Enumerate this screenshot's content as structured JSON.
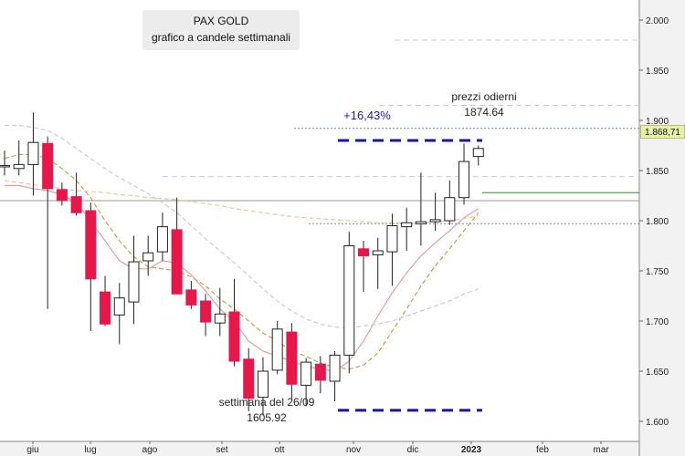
{
  "chart_data": {
    "type": "candlestick",
    "title": "PAX GOLD",
    "subtitle": "grafico a candele settimanali",
    "ylim": [
      1580,
      2020
    ],
    "y_ticks": [
      1600,
      1650,
      1700,
      1750,
      1800,
      1850,
      1900,
      1950,
      2000
    ],
    "y_tick_labels": [
      "1.600",
      "1.650",
      "1.700",
      "1.750",
      "1.800",
      "1.850",
      "1.900",
      "1.950",
      "2.000"
    ],
    "x_labels": [
      "giu",
      "lug",
      "ago",
      "set",
      "ott",
      "nov",
      "dic",
      "2023",
      "feb",
      "mar"
    ],
    "current_price_label": "1.868,71",
    "candles": [
      {
        "o": 1855,
        "h": 1870,
        "l": 1845,
        "c": 1855
      },
      {
        "o": 1852,
        "h": 1880,
        "l": 1845,
        "c": 1856
      },
      {
        "o": 1856,
        "h": 1908,
        "l": 1825,
        "c": 1878
      },
      {
        "o": 1877,
        "h": 1884,
        "l": 1712,
        "c": 1832
      },
      {
        "o": 1831,
        "h": 1838,
        "l": 1815,
        "c": 1820
      },
      {
        "o": 1824,
        "h": 1848,
        "l": 1805,
        "c": 1808
      },
      {
        "o": 1810,
        "h": 1818,
        "l": 1690,
        "c": 1742
      },
      {
        "o": 1729,
        "h": 1745,
        "l": 1695,
        "c": 1697
      },
      {
        "o": 1706,
        "h": 1738,
        "l": 1677,
        "c": 1723
      },
      {
        "o": 1719,
        "h": 1785,
        "l": 1697,
        "c": 1759
      },
      {
        "o": 1760,
        "h": 1785,
        "l": 1745,
        "c": 1768
      },
      {
        "o": 1769,
        "h": 1808,
        "l": 1760,
        "c": 1794
      },
      {
        "o": 1791,
        "h": 1823,
        "l": 1730,
        "c": 1727
      },
      {
        "o": 1731,
        "h": 1740,
        "l": 1712,
        "c": 1716
      },
      {
        "o": 1720,
        "h": 1727,
        "l": 1685,
        "c": 1699
      },
      {
        "o": 1698,
        "h": 1733,
        "l": 1685,
        "c": 1707
      },
      {
        "o": 1709,
        "h": 1742,
        "l": 1655,
        "c": 1660
      },
      {
        "o": 1662,
        "h": 1673,
        "l": 1610,
        "c": 1623
      },
      {
        "o": 1624,
        "h": 1664,
        "l": 1606,
        "c": 1650
      },
      {
        "o": 1651,
        "h": 1700,
        "l": 1647,
        "c": 1692
      },
      {
        "o": 1689,
        "h": 1698,
        "l": 1622,
        "c": 1637
      },
      {
        "o": 1636,
        "h": 1663,
        "l": 1615,
        "c": 1659
      },
      {
        "o": 1657,
        "h": 1665,
        "l": 1628,
        "c": 1641
      },
      {
        "o": 1640,
        "h": 1670,
        "l": 1620,
        "c": 1666
      },
      {
        "o": 1666,
        "h": 1789,
        "l": 1648,
        "c": 1775
      },
      {
        "o": 1772,
        "h": 1780,
        "l": 1729,
        "c": 1765
      },
      {
        "o": 1766,
        "h": 1783,
        "l": 1732,
        "c": 1770
      },
      {
        "o": 1769,
        "h": 1807,
        "l": 1735,
        "c": 1795
      },
      {
        "o": 1794,
        "h": 1813,
        "l": 1770,
        "c": 1798
      },
      {
        "o": 1797,
        "h": 1848,
        "l": 1775,
        "c": 1799
      },
      {
        "o": 1799,
        "h": 1828,
        "l": 1790,
        "c": 1801
      },
      {
        "o": 1800,
        "h": 1840,
        "l": 1796,
        "c": 1823
      },
      {
        "o": 1823,
        "h": 1877,
        "l": 1816,
        "c": 1859
      },
      {
        "o": 1864,
        "h": 1875,
        "l": 1855,
        "c": 1872
      }
    ],
    "moving_averages": [
      {
        "color": "#e89aa2",
        "values": [
          1835,
          1835,
          1832,
          1830,
          1826,
          1818,
          1800,
          1780,
          1760,
          1752,
          1752,
          1760,
          1758,
          1746,
          1730,
          1712,
          1700,
          1680,
          1670,
          1665,
          1660,
          1655,
          1652,
          1650,
          1660,
          1680,
          1705,
          1728,
          1748,
          1765,
          1778,
          1790,
          1803,
          1812
        ]
      },
      {
        "color": "#c8a040",
        "values": [
          1862,
          1866,
          1866,
          1862,
          1852,
          1840,
          1823,
          1800,
          1780,
          1764,
          1754,
          1752,
          1750,
          1744,
          1735,
          1722,
          1712,
          1700,
          1688,
          1680,
          1670,
          1665,
          1658,
          1654,
          1652,
          1656,
          1668,
          1690,
          1712,
          1735,
          1755,
          1772,
          1790,
          1808
        ]
      },
      {
        "color": "#cccccc",
        "values": [
          1895,
          1895,
          1893,
          1890,
          1882,
          1872,
          1862,
          1852,
          1843,
          1835,
          1827,
          1818,
          1808,
          1795,
          1782,
          1770,
          1758,
          1745,
          1732,
          1720,
          1710,
          1702,
          1697,
          1694,
          1693,
          1695,
          1697,
          1700,
          1705,
          1710,
          1715,
          1720,
          1727,
          1732
        ]
      },
      {
        "color": "#f0c896",
        "values": [
          1840,
          1838,
          1836,
          1834,
          1832,
          1830,
          1829,
          1828,
          1826,
          1825,
          1823,
          1822,
          1821,
          1819,
          1817,
          1815,
          1812,
          1810,
          1808,
          1806,
          1804,
          1803,
          1802,
          1801,
          1800,
          1799,
          1798,
          1798,
          1798,
          1798,
          1799,
          1800,
          1802,
          1805
        ]
      }
    ],
    "horizontal_levels": [
      {
        "value": 1980,
        "color": "#cccccc",
        "style": "dashed",
        "from": "right"
      },
      {
        "value": 1915,
        "color": "#cccccc",
        "style": "dashed",
        "from": "right"
      },
      {
        "value": 1892,
        "color": "#7090a0",
        "style": "dotted",
        "from": "right"
      },
      {
        "value": 1844,
        "color": "#cccccc",
        "style": "dashed",
        "from": "right"
      },
      {
        "value": 1820,
        "color": "#999999",
        "style": "solid",
        "from": "left"
      },
      {
        "value": 1828,
        "color": "#2e8b2e",
        "style": "solid",
        "from": "right"
      },
      {
        "value": 1797,
        "color": "#7090a0",
        "style": "dotted",
        "from": "right"
      }
    ],
    "target_lines": [
      {
        "value": 1880,
        "color": "#1414b4",
        "style": "dashed"
      },
      {
        "value": 1611,
        "color": "#1414b4",
        "style": "dashed"
      }
    ],
    "annotations": {
      "gain": "+16,43%",
      "high_label": "prezzi odierni",
      "high_value": "1874.64",
      "low_label": "settimana del 26/09",
      "low_value": "1605.92"
    },
    "colors": {
      "up": "#ffffff",
      "down": "#e8174a",
      "wick": "#222222",
      "plot_bg": "#ffffff",
      "axis_bg": "#f2f2f2"
    }
  }
}
